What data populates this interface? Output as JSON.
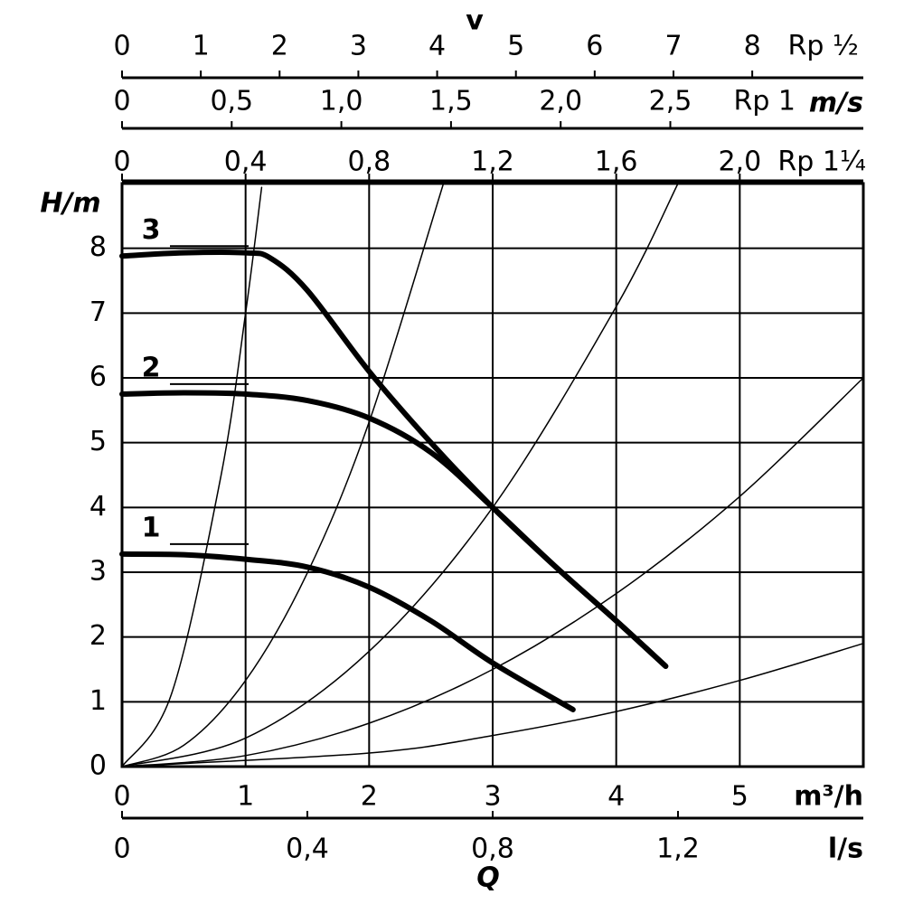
{
  "chart_data": {
    "type": "line",
    "x_label": "Q",
    "y_label": "H/m",
    "x_unit_label": "m³/h",
    "xlim": [
      0,
      6
    ],
    "xticks": [
      0,
      1,
      2,
      3,
      4,
      5
    ],
    "ylim": [
      0,
      9
    ],
    "yticks": [
      0,
      1,
      2,
      3,
      4,
      5,
      6,
      7,
      8
    ],
    "grid": true,
    "series": [
      {
        "name": "1",
        "color": "#000000",
        "x": [
          0,
          0.5,
          1,
          1.5,
          2,
          2.5,
          3,
          3.65
        ],
        "values": [
          3.28,
          3.27,
          3.2,
          3.08,
          2.77,
          2.25,
          1.6,
          0.88
        ]
      },
      {
        "name": "2",
        "color": "#000000",
        "x": [
          0,
          0.5,
          1,
          1.5,
          2,
          2.5,
          3,
          3.5,
          4,
          4.4
        ],
        "values": [
          5.75,
          5.77,
          5.75,
          5.65,
          5.38,
          4.85,
          4.0,
          3.1,
          2.25,
          1.55
        ]
      },
      {
        "name": "3",
        "color": "#000000",
        "x": [
          0,
          0.5,
          1,
          1.2,
          1.5,
          2,
          2.5,
          3,
          3.5,
          4,
          4.4
        ],
        "values": [
          7.88,
          7.93,
          7.93,
          7.85,
          7.35,
          6.1,
          5.0,
          4.0,
          3.1,
          2.25,
          1.55
        ]
      }
    ],
    "system_curves": [
      {
        "color": "#000000",
        "x": [
          0,
          0.4,
          0.8,
          1.0,
          1.13
        ],
        "values": [
          0,
          1.12,
          4.48,
          7.0,
          8.94
        ]
      },
      {
        "color": "#000000",
        "x": [
          0,
          0.5,
          1,
          1.5,
          2,
          2.6
        ],
        "values": [
          0,
          0.33,
          1.33,
          2.99,
          5.32,
          8.99
        ]
      },
      {
        "color": "#000000",
        "x": [
          0,
          1,
          2,
          3,
          4,
          4.5
        ],
        "values": [
          0,
          0.44,
          1.78,
          4.0,
          7.1,
          9.0
        ]
      },
      {
        "color": "#000000",
        "x": [
          0,
          1,
          2,
          3,
          4,
          5,
          6
        ],
        "values": [
          0,
          0.17,
          0.67,
          1.5,
          2.67,
          4.17,
          6.0
        ]
      },
      {
        "color": "#000000",
        "x": [
          0,
          2,
          3,
          4,
          5,
          6
        ],
        "values": [
          0,
          0.21,
          0.48,
          0.85,
          1.33,
          1.9
        ]
      }
    ],
    "flow_axis": {
      "label": "l/s",
      "xlim": [
        0,
        1.6
      ],
      "xticks": [
        0,
        {
          "value": 0.4,
          "label": "0,4"
        },
        {
          "value": 0.8,
          "label": "0,8"
        },
        {
          "value": 1.2,
          "label": "1,2"
        }
      ]
    },
    "velocity_label": "v",
    "velocity_unit": "m/s",
    "velocity_axes": [
      {
        "label": "Rp ½",
        "xlim": [
          0,
          9.41
        ],
        "xticks": [
          0,
          1,
          2,
          3,
          4,
          5,
          6,
          7,
          8
        ]
      },
      {
        "label": "Rp 1",
        "xlim": [
          0,
          3.38
        ],
        "xticks": [
          0,
          {
            "value": 0.5,
            "label": "0,5"
          },
          {
            "value": 1.0,
            "label": "1,0"
          },
          {
            "value": 1.5,
            "label": "1,5"
          },
          {
            "value": 2.0,
            "label": "2,0"
          },
          {
            "value": 2.5,
            "label": "2,5"
          }
        ]
      },
      {
        "label": "Rp 1¼",
        "xlim": [
          0,
          2.4
        ],
        "xticks": [
          0,
          {
            "value": 0.4,
            "label": "0,4"
          },
          {
            "value": 0.8,
            "label": "0,8"
          },
          {
            "value": 1.2,
            "label": "1,2"
          },
          {
            "value": 1.6,
            "label": "1,6"
          },
          {
            "value": 2.0,
            "label": "2,0"
          }
        ]
      }
    ]
  }
}
